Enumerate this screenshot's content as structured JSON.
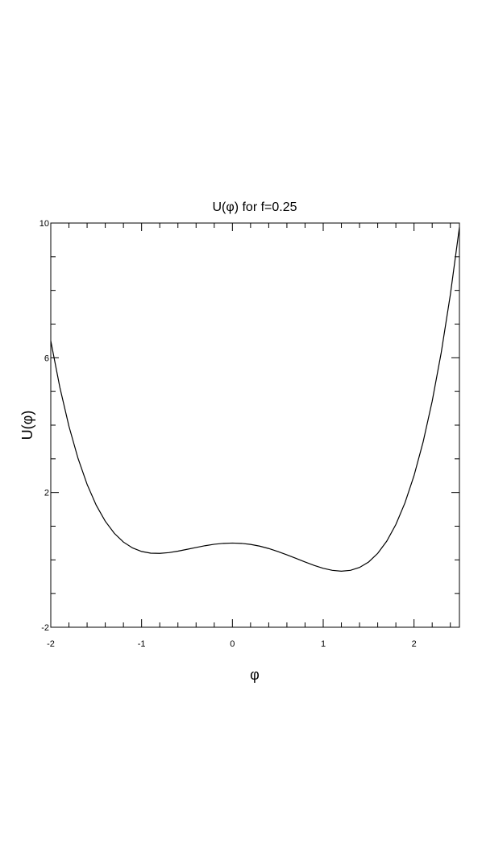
{
  "chart_data": {
    "type": "line",
    "title": "U(φ) for f=0.25",
    "x_label": "φ",
    "y_label": "U(φ)",
    "x": [
      -2,
      -1.9,
      -1.8,
      -1.7,
      -1.6,
      -1.5,
      -1.4,
      -1.3,
      -1.2,
      -1.1,
      -1,
      -0.9,
      -0.8,
      -0.7,
      -0.6,
      -0.5,
      -0.4,
      -0.3,
      -0.2,
      -0.1,
      0,
      0.1,
      0.2,
      0.3,
      0.4,
      0.5,
      0.6,
      0.7,
      0.8,
      0.9,
      1,
      1.1,
      1.2,
      1.3,
      1.4,
      1.5,
      1.6,
      1.7,
      1.8,
      1.9,
      2,
      2.1,
      2.2,
      2.3,
      2.4,
      2.5
    ],
    "values": [
      6.5,
      5.121,
      3.967,
      3.014,
      2.241,
      1.625,
      1.147,
      0.787,
      0.529,
      0.355,
      0.25,
      0.2,
      0.193,
      0.216,
      0.259,
      0.313,
      0.369,
      0.421,
      0.463,
      0.49,
      0.5,
      0.49,
      0.459,
      0.408,
      0.337,
      0.25,
      0.151,
      0.045,
      -0.063,
      -0.164,
      -0.25,
      -0.311,
      -0.335,
      -0.311,
      -0.225,
      -0.063,
      0.193,
      0.558,
      1.051,
      1.691,
      2.5,
      3.499,
      4.711,
      6.16,
      7.873,
      9.875
    ],
    "color": "#000000",
    "xlim": [
      -2,
      2.5
    ],
    "xticks": [
      -2,
      -1,
      0,
      1,
      2
    ],
    "x_minor_ticks": [
      -1.8,
      -1.6,
      -1.4,
      -1.2,
      -0.8,
      -0.6,
      -0.4,
      -0.2,
      0.2,
      0.4,
      0.6,
      0.8,
      1.2,
      1.4,
      1.6,
      1.8,
      2.2,
      2.4
    ],
    "ylim": [
      -2,
      10
    ],
    "yticks": [
      -2,
      2,
      6,
      10
    ],
    "y_minor_ticks": [
      -1,
      0,
      1,
      3,
      4,
      5,
      7,
      8,
      9
    ]
  }
}
